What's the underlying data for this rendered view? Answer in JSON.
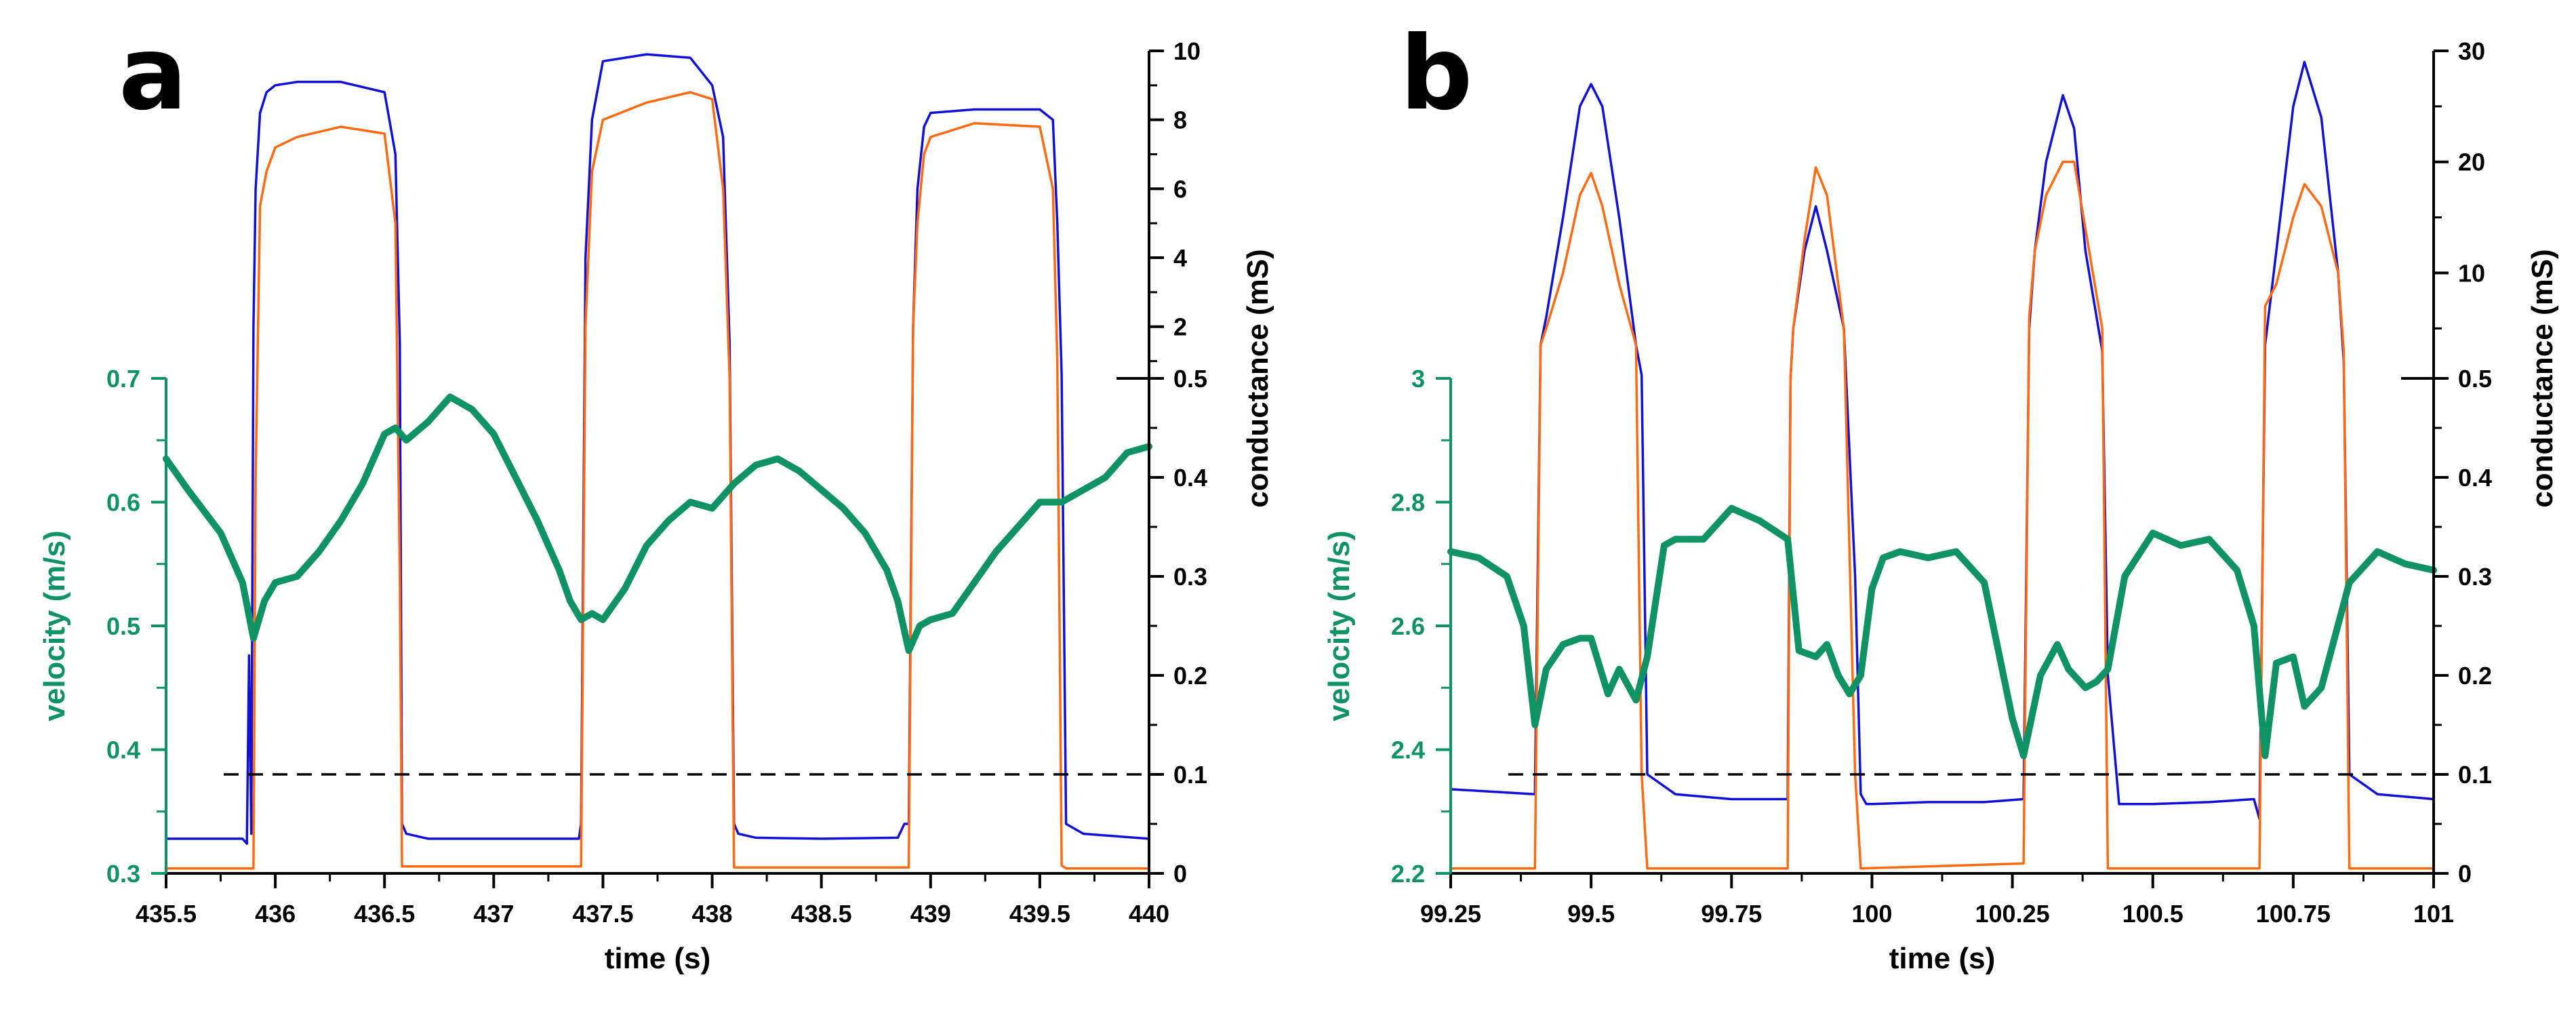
{
  "colors": {
    "velocity": "#0f9364",
    "blue": "#1010d8",
    "orange": "#ff6a10",
    "axis": "#000000"
  },
  "chart_data": [
    {
      "panel": "a",
      "type": "line",
      "xlabel": "time (s)",
      "ylabel_left": "velocity (m/s)",
      "ylabel_right": "conductance (mS)",
      "xlim": [
        435.5,
        440
      ],
      "x_ticks": [
        435.5,
        436,
        436.5,
        437,
        437.5,
        438,
        438.5,
        439,
        439.5,
        440
      ],
      "x_tick_labels": [
        "435.5",
        "436",
        "436.5",
        "437",
        "437.5",
        "438",
        "438.5",
        "439",
        "439.5",
        "440"
      ],
      "velocity_lim": [
        0.3,
        0.7
      ],
      "velocity_ticks": [
        0.3,
        0.4,
        0.5,
        0.6,
        0.7
      ],
      "velocity_tick_labels": [
        "0.3",
        "0.4",
        "0.5",
        "0.6",
        "0.7"
      ],
      "cond_low_lim": [
        0,
        0.5
      ],
      "cond_low_ticks": [
        0,
        0.1,
        0.2,
        0.3,
        0.4,
        0.5
      ],
      "cond_low_tick_labels": [
        "0",
        "0.1",
        "0.2",
        "0.3",
        "0.4",
        "0.5"
      ],
      "cond_high_lim": [
        0.5,
        10
      ],
      "cond_high_ticks": [
        2,
        4,
        6,
        8,
        10
      ],
      "cond_high_tick_labels": [
        "2",
        "4",
        "6",
        "8",
        "10"
      ],
      "threshold": 0.1,
      "series": [
        {
          "color_key": "blue",
          "x": [
            435.5,
            435.85,
            435.87,
            435.88,
            435.89,
            435.9,
            435.91,
            435.93,
            435.96,
            436.0,
            436.1,
            436.3,
            436.5,
            436.55,
            436.57,
            436.58,
            436.6,
            436.7,
            437.0,
            437.3,
            437.39,
            437.4,
            437.42,
            437.45,
            437.5,
            437.7,
            437.9,
            438.0,
            438.05,
            438.08,
            438.1,
            438.12,
            438.2,
            438.5,
            438.85,
            438.88,
            438.9,
            438.92,
            438.94,
            438.97,
            439.0,
            439.2,
            439.5,
            439.56,
            439.58,
            439.6,
            439.62,
            439.7,
            440.0
          ],
          "y": [
            0.035,
            0.035,
            0.03,
            0.22,
            0.04,
            2,
            6,
            8.2,
            8.8,
            9.0,
            9.1,
            9.1,
            8.8,
            7.0,
            1.5,
            0.05,
            0.04,
            0.035,
            0.035,
            0.035,
            0.035,
            0.05,
            4,
            8,
            9.7,
            9.9,
            9.8,
            9.0,
            7.5,
            1.5,
            0.05,
            0.04,
            0.036,
            0.035,
            0.036,
            0.05,
            0.05,
            2,
            6,
            7.8,
            8.2,
            8.3,
            8.3,
            8.0,
            5.0,
            0.6,
            0.05,
            0.04,
            0.035
          ]
        },
        {
          "color_key": "orange",
          "x": [
            435.5,
            435.9,
            435.91,
            435.93,
            435.96,
            436.0,
            436.1,
            436.3,
            436.5,
            436.55,
            436.57,
            436.58,
            436.6,
            437.0,
            437.4,
            437.42,
            437.45,
            437.5,
            437.7,
            437.9,
            438.0,
            438.05,
            438.08,
            438.1,
            438.12,
            438.9,
            438.92,
            438.94,
            438.97,
            439.0,
            439.2,
            439.5,
            439.56,
            439.58,
            439.6,
            439.62,
            440.0
          ],
          "y": [
            0.005,
            0.005,
            0.4,
            5.5,
            6.5,
            7.2,
            7.5,
            7.8,
            7.6,
            5.0,
            0.3,
            0.007,
            0.007,
            0.007,
            0.007,
            2,
            6.5,
            8.0,
            8.5,
            8.8,
            8.6,
            6.0,
            0.5,
            0.006,
            0.006,
            0.006,
            2,
            5,
            7.0,
            7.5,
            7.9,
            7.8,
            6.0,
            1.0,
            0.008,
            0.005,
            0.005
          ]
        },
        {
          "color_key": "velocity",
          "axis": "velocity",
          "x": [
            435.5,
            435.6,
            435.75,
            435.85,
            435.9,
            435.95,
            436.0,
            436.1,
            436.2,
            436.3,
            436.4,
            436.5,
            436.55,
            436.6,
            436.7,
            436.8,
            436.9,
            437.0,
            437.1,
            437.2,
            437.3,
            437.35,
            437.4,
            437.45,
            437.5,
            437.6,
            437.7,
            437.8,
            437.9,
            438.0,
            438.1,
            438.2,
            438.3,
            438.4,
            438.5,
            438.6,
            438.7,
            438.8,
            438.85,
            438.9,
            438.95,
            439.0,
            439.1,
            439.2,
            439.3,
            439.4,
            439.5,
            439.6,
            439.7,
            439.8,
            439.9,
            440.0
          ],
          "y": [
            0.635,
            0.61,
            0.575,
            0.535,
            0.49,
            0.52,
            0.535,
            0.54,
            0.56,
            0.585,
            0.615,
            0.655,
            0.66,
            0.65,
            0.665,
            0.685,
            0.675,
            0.655,
            0.62,
            0.585,
            0.545,
            0.52,
            0.505,
            0.51,
            0.505,
            0.53,
            0.565,
            0.585,
            0.6,
            0.595,
            0.615,
            0.63,
            0.635,
            0.625,
            0.61,
            0.595,
            0.575,
            0.545,
            0.52,
            0.48,
            0.5,
            0.505,
            0.51,
            0.535,
            0.56,
            0.58,
            0.6,
            0.6,
            0.61,
            0.62,
            0.64,
            0.645
          ]
        }
      ]
    },
    {
      "panel": "b",
      "type": "line",
      "xlabel": "time (s)",
      "ylabel_left": "velocity (m/s)",
      "ylabel_right": "conductance (mS)",
      "xlim": [
        99.25,
        101
      ],
      "x_ticks": [
        99.25,
        99.5,
        99.75,
        100,
        100.25,
        100.5,
        100.75,
        101
      ],
      "x_tick_labels": [
        "99.25",
        "99.5",
        "99.75",
        "100",
        "100.25",
        "100.5",
        "100.75",
        "101"
      ],
      "velocity_lim": [
        2.2,
        3.0
      ],
      "velocity_ticks": [
        2.2,
        2.4,
        2.6,
        2.8,
        3.0
      ],
      "velocity_tick_labels": [
        "2.2",
        "2.4",
        "2.6",
        "2.8",
        "3"
      ],
      "cond_low_lim": [
        0,
        0.5
      ],
      "cond_low_ticks": [
        0,
        0.1,
        0.2,
        0.3,
        0.4,
        0.5
      ],
      "cond_low_tick_labels": [
        "0",
        "0.1",
        "0.2",
        "0.3",
        "0.4",
        "0.5"
      ],
      "cond_high_lim": [
        0.5,
        30
      ],
      "cond_high_ticks": [
        10,
        20,
        30
      ],
      "cond_high_tick_labels": [
        "10",
        "20",
        "30"
      ],
      "threshold": 0.1,
      "series": [
        {
          "color_key": "blue",
          "x": [
            99.25,
            99.4,
            99.41,
            99.42,
            99.45,
            99.48,
            99.5,
            99.52,
            99.55,
            99.58,
            99.59,
            99.6,
            99.65,
            99.75,
            99.85,
            99.855,
            99.86,
            99.88,
            99.9,
            99.92,
            99.95,
            99.97,
            99.98,
            99.99,
            100.0,
            100.1,
            100.2,
            100.27,
            100.28,
            100.29,
            100.31,
            100.34,
            100.36,
            100.38,
            100.41,
            100.42,
            100.44,
            100.5,
            100.6,
            100.68,
            100.69,
            100.7,
            100.72,
            100.75,
            100.77,
            100.8,
            100.83,
            100.84,
            100.85,
            100.9,
            101.0
          ],
          "y": [
            0.085,
            0.08,
            3.5,
            6,
            15,
            25,
            27,
            25,
            15,
            3.5,
            0.8,
            0.1,
            0.08,
            0.075,
            0.075,
            0.5,
            5,
            12,
            16,
            12,
            5,
            0.3,
            0.08,
            0.07,
            0.07,
            0.072,
            0.072,
            0.075,
            5,
            12,
            20,
            26,
            23,
            12,
            3,
            0.2,
            0.07,
            0.07,
            0.072,
            0.075,
            0.055,
            3.5,
            12,
            25,
            29,
            24,
            10,
            2,
            0.1,
            0.08,
            0.075
          ]
        },
        {
          "color_key": "orange",
          "x": [
            99.25,
            99.4,
            99.41,
            99.42,
            99.45,
            99.48,
            99.5,
            99.52,
            99.55,
            99.58,
            99.59,
            99.6,
            99.85,
            99.855,
            99.86,
            99.88,
            99.9,
            99.92,
            99.95,
            99.97,
            99.98,
            100.27,
            100.28,
            100.29,
            100.31,
            100.34,
            100.36,
            100.38,
            100.41,
            100.42,
            100.69,
            100.7,
            100.72,
            100.75,
            100.77,
            100.8,
            100.83,
            100.84,
            100.85,
            101.0
          ],
          "y": [
            0.005,
            0.005,
            3.5,
            5,
            10,
            17,
            19,
            16,
            9,
            3.5,
            0.1,
            0.005,
            0.005,
            0.5,
            5,
            13,
            19.5,
            17,
            5,
            0.1,
            0.005,
            0.01,
            6,
            12,
            17,
            20,
            20,
            14,
            5,
            0.005,
            0.005,
            7,
            9,
            15,
            18,
            16,
            10,
            3,
            0.005,
            0.005
          ]
        },
        {
          "color_key": "velocity",
          "axis": "velocity",
          "x": [
            99.25,
            99.3,
            99.35,
            99.38,
            99.4,
            99.42,
            99.45,
            99.48,
            99.5,
            99.53,
            99.55,
            99.58,
            99.6,
            99.63,
            99.65,
            99.7,
            99.75,
            99.8,
            99.85,
            99.87,
            99.9,
            99.92,
            99.94,
            99.96,
            99.98,
            100.0,
            100.02,
            100.05,
            100.1,
            100.15,
            100.2,
            100.25,
            100.27,
            100.3,
            100.33,
            100.35,
            100.38,
            100.4,
            100.42,
            100.45,
            100.5,
            100.55,
            100.6,
            100.65,
            100.68,
            100.7,
            100.72,
            100.75,
            100.77,
            100.8,
            100.85,
            100.9,
            100.95,
            101.0
          ],
          "y": [
            2.72,
            2.71,
            2.68,
            2.6,
            2.44,
            2.53,
            2.57,
            2.58,
            2.58,
            2.49,
            2.53,
            2.48,
            2.55,
            2.73,
            2.74,
            2.74,
            2.79,
            2.77,
            2.74,
            2.56,
            2.55,
            2.57,
            2.52,
            2.49,
            2.52,
            2.66,
            2.71,
            2.72,
            2.71,
            2.72,
            2.67,
            2.45,
            2.39,
            2.52,
            2.57,
            2.53,
            2.5,
            2.51,
            2.53,
            2.68,
            2.75,
            2.73,
            2.74,
            2.69,
            2.6,
            2.39,
            2.54,
            2.55,
            2.47,
            2.5,
            2.67,
            2.72,
            2.7,
            2.69
          ]
        }
      ]
    }
  ]
}
